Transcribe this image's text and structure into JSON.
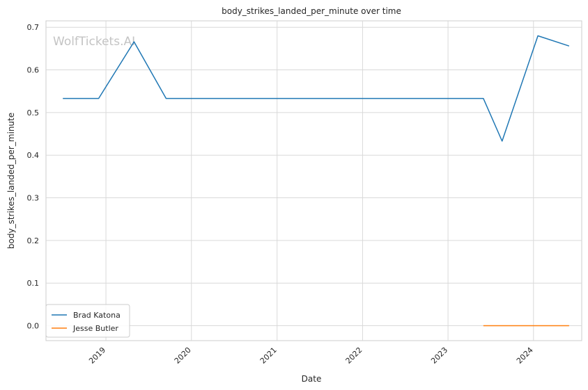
{
  "chart_data": {
    "type": "line",
    "title": "body_strikes_landed_per_minute over time",
    "xlabel": "Date",
    "ylabel": "body_strikes_landed_per_minute",
    "watermark": "WolfTickets.AI",
    "grid": true,
    "legend_position": "lower-left",
    "x_ticks": [
      "2019",
      "2020",
      "2021",
      "2022",
      "2023",
      "2024"
    ],
    "y_ticks": [
      "0.0",
      "0.1",
      "0.2",
      "0.3",
      "0.4",
      "0.5",
      "0.6",
      "0.7"
    ],
    "xlim": [
      "2018-04-20",
      "2024-07-25"
    ],
    "ylim": [
      -0.035,
      0.715
    ],
    "series": [
      {
        "name": "Brad Katona",
        "color": "#1f77b4",
        "x": [
          "2018-07-01",
          "2018-12-01",
          "2019-05-01",
          "2019-09-15",
          "2023-06-01",
          "2023-08-20",
          "2024-01-20",
          "2024-06-01"
        ],
        "y": [
          0.533,
          0.533,
          0.666,
          0.533,
          0.533,
          0.433,
          0.68,
          0.656
        ]
      },
      {
        "name": "Jesse Butler",
        "color": "#ff7f0e",
        "x": [
          "2023-06-01",
          "2024-06-01"
        ],
        "y": [
          0.0,
          0.0
        ]
      }
    ]
  }
}
